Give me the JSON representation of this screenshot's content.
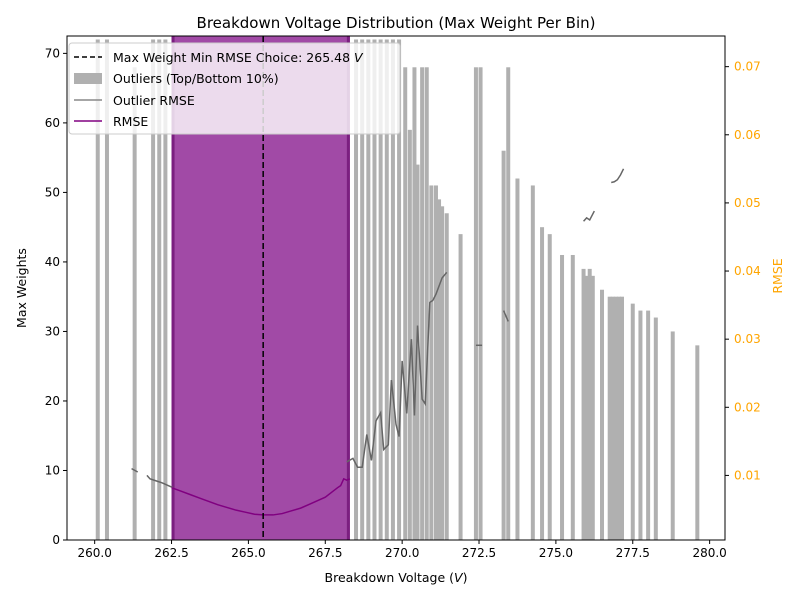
{
  "chart_data": {
    "type": "bar",
    "title": "Breakdown Voltage Distribution (Max Weight Per Bin)",
    "xlabel_text": "Breakdown Voltage (",
    "xlabel_unit": "V",
    "xlabel_close": ")",
    "ylabel": "Max Weights",
    "y2label": "RMSE",
    "xlim": [
      259.1,
      280.5
    ],
    "ylim": [
      0,
      72.5
    ],
    "y2lim": [
      0.00052,
      0.0745
    ],
    "x_ticks": [
      260.0,
      262.5,
      265.0,
      267.5,
      270.0,
      272.5,
      275.0,
      277.5,
      280.0
    ],
    "x_tick_labels": [
      "260.0",
      "262.5",
      "265.0",
      "267.5",
      "270.0",
      "272.5",
      "275.0",
      "277.5",
      "280.0"
    ],
    "y_ticks": [
      0,
      10,
      20,
      30,
      40,
      50,
      60,
      70
    ],
    "y2_ticks": [
      0.01,
      0.02,
      0.03,
      0.04,
      0.05,
      0.06,
      0.07
    ],
    "y2_tick_labels": [
      "0.01",
      "0.02",
      "0.03",
      "0.04",
      "0.05",
      "0.06",
      "0.07"
    ],
    "colors": {
      "outlier_bars": "#b0b0b0",
      "inner_bars": "#a14aa6",
      "inner_edge": "#7b1f80",
      "rmse": "#800080",
      "outlier_rmse": "#666666",
      "choice_line": "#000000",
      "right_axis": "#ffa500"
    },
    "choice": {
      "x": 265.48,
      "label": "Max Weight Min RMSE Choice: 265.48",
      "unit": "V"
    },
    "legend": {
      "placement": "upper-left",
      "entries": [
        "Max Weight Min RMSE Choice: 265.48 V",
        "Outliers (Top/Bottom 10%)",
        "Outlier RMSE",
        "RMSE"
      ],
      "outliers_label": "Outliers (Top/Bottom 10%)",
      "outlier_rmse_label": "Outlier RMSE",
      "rmse_label": "RMSE"
    },
    "inner_band": {
      "x_start": 262.5,
      "x_end": 268.3,
      "value": 72.5
    },
    "outlier_bars": [
      {
        "x": 260.1,
        "value": 72
      },
      {
        "x": 260.4,
        "value": 72
      },
      {
        "x": 261.3,
        "value": 68
      },
      {
        "x": 261.9,
        "value": 72
      },
      {
        "x": 262.1,
        "value": 72
      },
      {
        "x": 262.3,
        "value": 72
      },
      {
        "x": 268.5,
        "value": 72
      },
      {
        "x": 268.7,
        "value": 72
      },
      {
        "x": 268.9,
        "value": 72
      },
      {
        "x": 269.1,
        "value": 72
      },
      {
        "x": 269.3,
        "value": 72
      },
      {
        "x": 269.5,
        "value": 72
      },
      {
        "x": 269.7,
        "value": 72
      },
      {
        "x": 269.9,
        "value": 72
      },
      {
        "x": 270.1,
        "value": 68
      },
      {
        "x": 270.25,
        "value": 59
      },
      {
        "x": 270.4,
        "value": 68
      },
      {
        "x": 270.5,
        "value": 54
      },
      {
        "x": 270.65,
        "value": 68
      },
      {
        "x": 270.8,
        "value": 68
      },
      {
        "x": 270.95,
        "value": 51
      },
      {
        "x": 271.1,
        "value": 51
      },
      {
        "x": 271.2,
        "value": 49
      },
      {
        "x": 271.3,
        "value": 48
      },
      {
        "x": 271.45,
        "value": 47
      },
      {
        "x": 271.9,
        "value": 44
      },
      {
        "x": 272.4,
        "value": 68
      },
      {
        "x": 272.55,
        "value": 68
      },
      {
        "x": 273.3,
        "value": 56
      },
      {
        "x": 273.45,
        "value": 68
      },
      {
        "x": 273.75,
        "value": 52
      },
      {
        "x": 274.25,
        "value": 51
      },
      {
        "x": 274.55,
        "value": 45
      },
      {
        "x": 274.8,
        "value": 44
      },
      {
        "x": 275.2,
        "value": 41
      },
      {
        "x": 275.55,
        "value": 41
      },
      {
        "x": 275.9,
        "value": 39
      },
      {
        "x": 276.0,
        "value": 38
      },
      {
        "x": 276.1,
        "value": 39
      },
      {
        "x": 276.2,
        "value": 38
      },
      {
        "x": 276.5,
        "value": 36
      },
      {
        "x": 276.75,
        "value": 35
      },
      {
        "x": 276.85,
        "value": 35
      },
      {
        "x": 276.95,
        "value": 35
      },
      {
        "x": 277.05,
        "value": 35
      },
      {
        "x": 277.15,
        "value": 35
      },
      {
        "x": 277.5,
        "value": 34
      },
      {
        "x": 277.75,
        "value": 33
      },
      {
        "x": 278.0,
        "value": 33
      },
      {
        "x": 278.25,
        "value": 32
      },
      {
        "x": 278.8,
        "value": 30
      },
      {
        "x": 279.6,
        "value": 28
      }
    ],
    "outlier_rmse_segments": [
      [
        [
          261.2,
          0.011
        ],
        [
          261.4,
          0.0105
        ]
      ],
      [
        [
          261.7,
          0.01
        ],
        [
          261.8,
          0.0095
        ],
        [
          262.0,
          0.0092
        ],
        [
          262.2,
          0.0089
        ],
        [
          262.4,
          0.0085
        ],
        [
          262.55,
          0.0082
        ]
      ],
      [
        [
          268.2,
          0.012
        ],
        [
          268.4,
          0.0125
        ],
        [
          268.55,
          0.0112
        ],
        [
          268.7,
          0.0112
        ],
        [
          268.85,
          0.016
        ],
        [
          269.0,
          0.0122
        ],
        [
          269.15,
          0.018
        ],
        [
          269.3,
          0.0192
        ],
        [
          269.4,
          0.0138
        ],
        [
          269.55,
          0.0145
        ],
        [
          269.65,
          0.024
        ],
        [
          269.8,
          0.0175
        ],
        [
          269.9,
          0.0157
        ],
        [
          270.0,
          0.0268
        ],
        [
          270.15,
          0.0191
        ],
        [
          270.3,
          0.03
        ],
        [
          270.4,
          0.0188
        ],
        [
          270.5,
          0.032
        ],
        [
          270.65,
          0.0212
        ],
        [
          270.75,
          0.0205
        ],
        [
          270.9,
          0.0354
        ],
        [
          271.0,
          0.0357
        ],
        [
          271.1,
          0.0366
        ],
        [
          271.2,
          0.0378
        ],
        [
          271.3,
          0.039
        ],
        [
          271.45,
          0.0398
        ]
      ],
      [
        [
          272.4,
          0.0291
        ],
        [
          272.6,
          0.0291
        ]
      ],
      [
        [
          273.3,
          0.0342
        ],
        [
          273.45,
          0.0326
        ]
      ],
      [
        [
          275.9,
          0.0473
        ],
        [
          276.0,
          0.0478
        ],
        [
          276.1,
          0.0475
        ],
        [
          276.25,
          0.0488
        ]
      ],
      [
        [
          276.8,
          0.053
        ],
        [
          276.9,
          0.0531
        ],
        [
          277.0,
          0.0534
        ],
        [
          277.1,
          0.0541
        ],
        [
          277.2,
          0.055
        ]
      ]
    ],
    "rmse_line": [
      [
        262.5,
        0.0082
      ],
      [
        262.8,
        0.0077
      ],
      [
        263.1,
        0.0072
      ],
      [
        263.4,
        0.0067
      ],
      [
        263.7,
        0.0062
      ],
      [
        264.0,
        0.0057
      ],
      [
        264.3,
        0.0053
      ],
      [
        264.6,
        0.0049
      ],
      [
        264.9,
        0.0046
      ],
      [
        265.2,
        0.0043
      ],
      [
        265.48,
        0.0042
      ],
      [
        265.8,
        0.0042
      ],
      [
        266.1,
        0.0044
      ],
      [
        266.4,
        0.0048
      ],
      [
        266.7,
        0.0052
      ],
      [
        267.0,
        0.0058
      ],
      [
        267.3,
        0.0064
      ],
      [
        267.5,
        0.0068
      ],
      [
        267.7,
        0.0075
      ],
      [
        267.9,
        0.0082
      ],
      [
        268.0,
        0.0085
      ],
      [
        268.1,
        0.0095
      ],
      [
        268.2,
        0.0093
      ],
      [
        268.3,
        0.0095
      ]
    ]
  }
}
